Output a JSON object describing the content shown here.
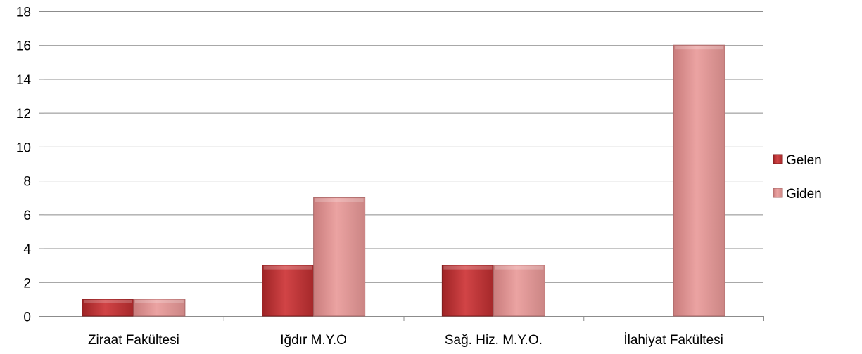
{
  "chart_data": {
    "type": "bar",
    "title": "",
    "xlabel": "",
    "ylabel": "",
    "categories": [
      "Ziraat Fakültesi",
      "Iğdır M.Y.O",
      "Sağ. Hiz. M.Y.O.",
      "İlahiyat Fakültesi"
    ],
    "series": [
      {
        "name": "Gelen",
        "values": [
          1,
          3,
          3,
          0
        ],
        "color": "#c0393b"
      },
      {
        "name": "Giden",
        "values": [
          1,
          7,
          3,
          16
        ],
        "color": "#e39594"
      }
    ],
    "ylim": [
      0,
      18
    ],
    "yticks": [
      0,
      2,
      4,
      6,
      8,
      10,
      12,
      14,
      16,
      18
    ],
    "grid": true,
    "legend_position": "right"
  }
}
